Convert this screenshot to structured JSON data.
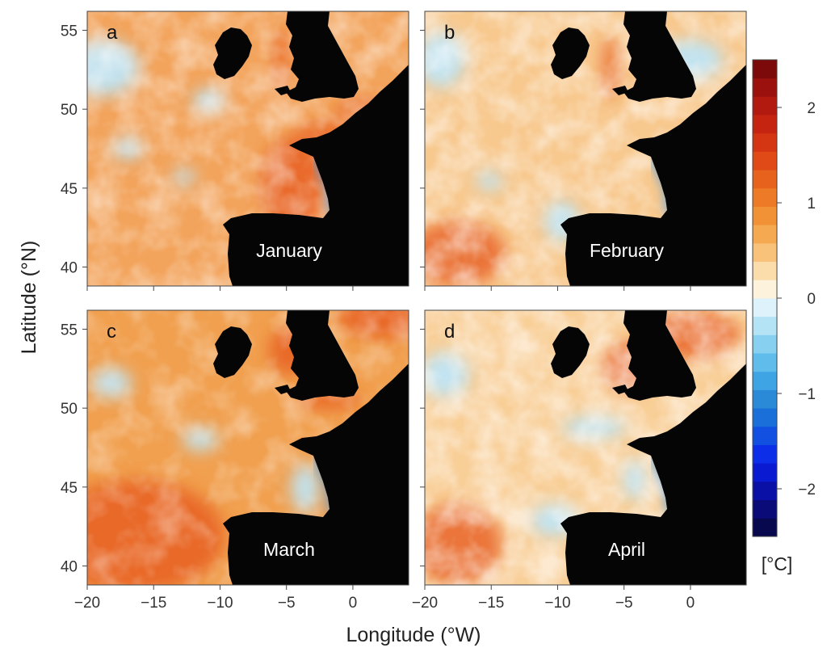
{
  "figure": {
    "ylabel": "Latitude (°N)",
    "xlabel": "Longitude (°W)",
    "panels": [
      {
        "letter": "a",
        "month": "January"
      },
      {
        "letter": "b",
        "month": "February"
      },
      {
        "letter": "c",
        "month": "March"
      },
      {
        "letter": "d",
        "month": "April"
      }
    ],
    "x_ticks": [
      "−20",
      "−15",
      "−10",
      "−5",
      "0"
    ],
    "y_ticks": [
      "55",
      "50",
      "45",
      "40"
    ],
    "x_tick_values": [
      -20,
      -15,
      -10,
      -5,
      0
    ],
    "y_tick_values": [
      55,
      50,
      45,
      40
    ],
    "lon_range": [
      -20,
      4.2
    ],
    "lat_range": [
      38.8,
      56.2
    ]
  },
  "colorbar": {
    "range": [
      -2.5,
      2.5
    ],
    "ticks": [
      "2",
      "1",
      "0",
      "−1",
      "−2"
    ],
    "tick_values": [
      2,
      1,
      0,
      -1,
      -2
    ],
    "unit": "[°C]",
    "colors": [
      "#08084f",
      "#0a0a78",
      "#0a10a6",
      "#0a1ad0",
      "#0c2ee8",
      "#1150e0",
      "#1a70d8",
      "#2a8ad8",
      "#3fa4e4",
      "#5fbceb",
      "#87d0f0",
      "#b4e3f5",
      "#ddf2fa",
      "#fdf3dc",
      "#fbdcab",
      "#f8c27a",
      "#f5aa52",
      "#f19237",
      "#ec7a26",
      "#e6621d",
      "#df4a16",
      "#d43513",
      "#c52410",
      "#b2190f",
      "#9b110d",
      "#7d0a0a"
    ]
  }
}
